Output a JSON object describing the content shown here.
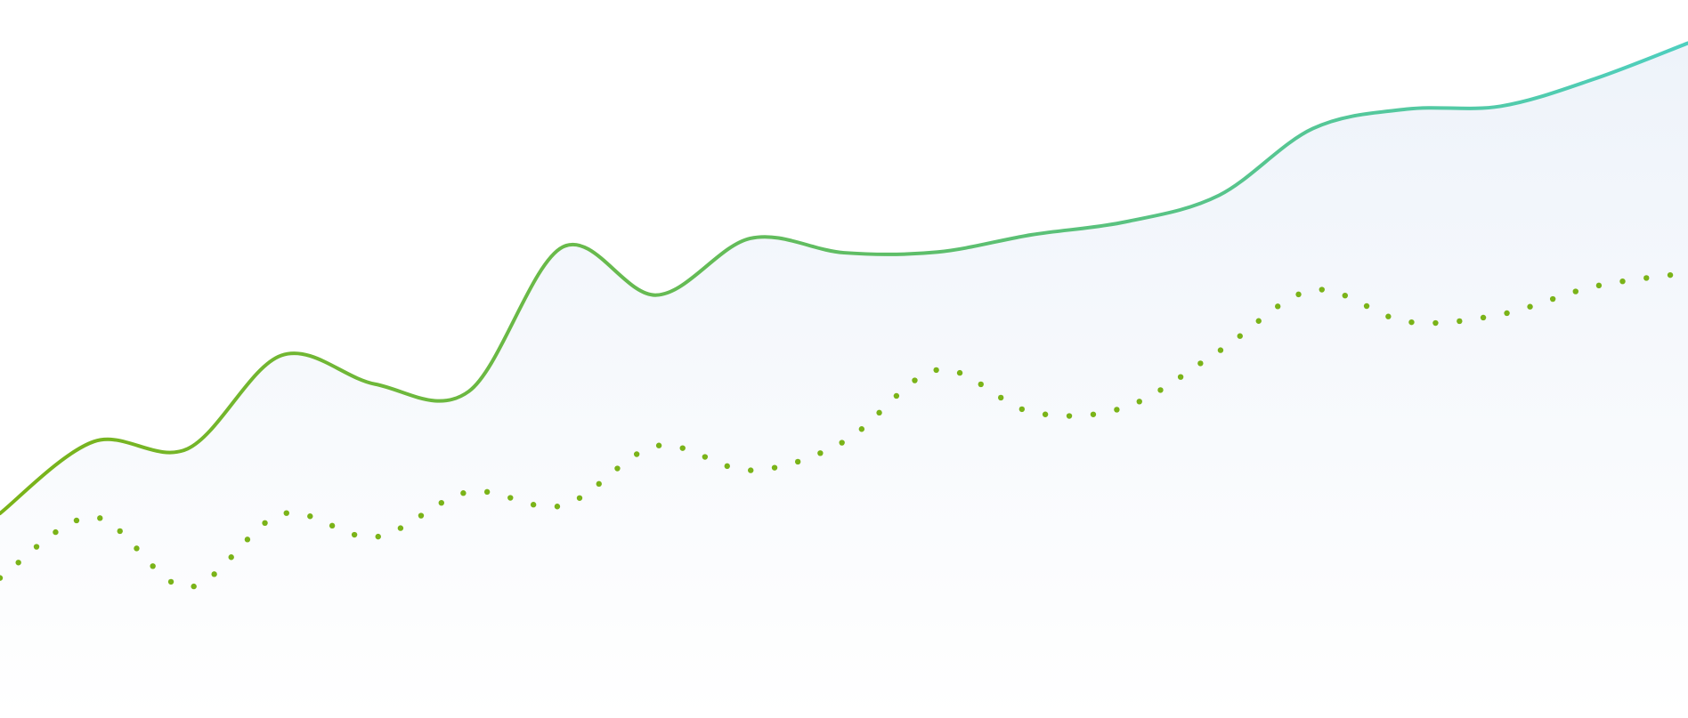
{
  "chart_data": {
    "type": "line",
    "title": "",
    "xlabel": "",
    "ylabel": "",
    "grid": false,
    "legend": "none",
    "xlim": [
      0,
      18
    ],
    "ylim": [
      0,
      100
    ],
    "x": [
      0,
      1,
      2,
      3,
      4,
      5,
      6,
      7,
      8,
      9,
      10,
      11,
      12,
      13,
      14,
      15,
      16,
      17,
      18
    ],
    "series": [
      {
        "style": "solid",
        "area": true,
        "values": [
          28.5,
          38.5,
          37.5,
          50.5,
          46.5,
          45.5,
          65.6,
          58.9,
          66.8,
          64.8,
          64.9,
          67.3,
          69.1,
          72.8,
          82.1,
          84.8,
          85.2,
          89.0,
          94.0
        ]
      },
      {
        "style": "dotted",
        "area": false,
        "values": [
          19.5,
          28.0,
          18.2,
          28.4,
          25.2,
          31.5,
          29.6,
          37.9,
          34.5,
          38.5,
          48.5,
          42.6,
          43.3,
          51.1,
          59.6,
          55.2,
          56.2,
          60.1,
          62.0
        ]
      }
    ],
    "colors": {
      "line_start": "#7ab318",
      "line_mid": "#5dbe6b",
      "line_end": "#4ecfbf",
      "dots": "#7ab318",
      "area_top": "#eef3fa",
      "area_bottom": "#ffffff"
    }
  }
}
